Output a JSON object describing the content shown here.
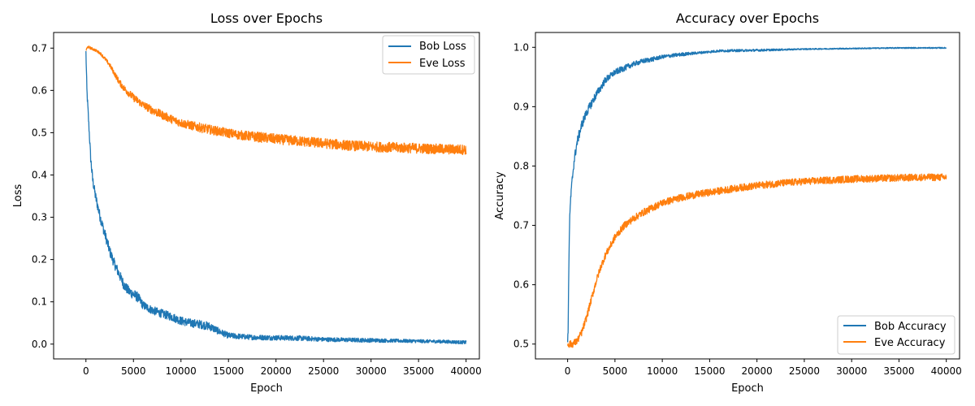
{
  "chart_data": [
    {
      "type": "line",
      "title": "Loss over Epochs",
      "xlabel": "Epoch",
      "ylabel": "Loss",
      "xlim": [
        -3400,
        41400
      ],
      "ylim": [
        -0.035,
        0.737
      ],
      "xticks": [
        0,
        5000,
        10000,
        15000,
        20000,
        25000,
        30000,
        35000,
        40000
      ],
      "yticks": [
        0.0,
        0.1,
        0.2,
        0.3,
        0.4,
        0.5,
        0.6,
        0.7
      ],
      "grid": false,
      "legend": "upper right",
      "series": [
        {
          "name": "Bob Loss",
          "color": "#1f77b4",
          "x": [
            0,
            100,
            200,
            300,
            400,
            500,
            700,
            1000,
            1500,
            2000,
            2500,
            3000,
            3500,
            4000,
            4500,
            5000,
            5500,
            6000,
            7000,
            8000,
            9000,
            10000,
            11000,
            12000,
            13000,
            14000,
            15000,
            17500,
            20000,
            22500,
            25000,
            27500,
            30000,
            32500,
            35000,
            37500,
            40000
          ],
          "values": [
            0.69,
            0.6,
            0.56,
            0.52,
            0.48,
            0.44,
            0.39,
            0.35,
            0.3,
            0.26,
            0.22,
            0.19,
            0.165,
            0.14,
            0.125,
            0.118,
            0.11,
            0.092,
            0.08,
            0.072,
            0.065,
            0.055,
            0.05,
            0.047,
            0.042,
            0.03,
            0.02,
            0.016,
            0.015,
            0.014,
            0.011,
            0.01,
            0.009,
            0.008,
            0.007,
            0.006,
            0.004
          ],
          "noise": [
            0.01,
            0.01,
            0.01,
            0.01,
            0.01,
            0.012,
            0.012,
            0.012,
            0.012,
            0.012,
            0.012,
            0.012,
            0.012,
            0.012,
            0.012,
            0.012,
            0.012,
            0.01,
            0.01,
            0.01,
            0.01,
            0.01,
            0.01,
            0.01,
            0.01,
            0.008,
            0.007,
            0.006,
            0.006,
            0.006,
            0.005,
            0.005,
            0.005,
            0.004,
            0.004,
            0.004,
            0.004
          ]
        },
        {
          "name": "Eve Loss",
          "color": "#ff7f0e",
          "x": [
            0,
            200,
            500,
            1000,
            1500,
            2000,
            2500,
            3000,
            3500,
            4000,
            5000,
            6000,
            7000,
            8000,
            9000,
            10000,
            12000,
            14000,
            16000,
            18000,
            20000,
            22500,
            25000,
            27500,
            30000,
            32500,
            35000,
            37500,
            40000
          ],
          "values": [
            0.695,
            0.703,
            0.7,
            0.695,
            0.688,
            0.675,
            0.66,
            0.64,
            0.62,
            0.605,
            0.583,
            0.566,
            0.553,
            0.542,
            0.532,
            0.523,
            0.512,
            0.503,
            0.495,
            0.49,
            0.485,
            0.48,
            0.475,
            0.47,
            0.467,
            0.465,
            0.463,
            0.461,
            0.46
          ],
          "noise": [
            0.003,
            0.003,
            0.003,
            0.003,
            0.003,
            0.004,
            0.005,
            0.006,
            0.007,
            0.008,
            0.009,
            0.009,
            0.01,
            0.01,
            0.01,
            0.01,
            0.011,
            0.011,
            0.011,
            0.012,
            0.012,
            0.012,
            0.012,
            0.012,
            0.012,
            0.012,
            0.012,
            0.012,
            0.012
          ]
        }
      ]
    },
    {
      "type": "line",
      "title": "Accuracy over Epochs",
      "xlabel": "Epoch",
      "ylabel": "Accuracy",
      "xlim": [
        -3400,
        41400
      ],
      "ylim": [
        0.475,
        1.025
      ],
      "xticks": [
        0,
        5000,
        10000,
        15000,
        20000,
        25000,
        30000,
        35000,
        40000
      ],
      "yticks": [
        0.5,
        0.6,
        0.7,
        0.8,
        0.9,
        1.0
      ],
      "grid": false,
      "legend": "lower right",
      "series": [
        {
          "name": "Bob Accuracy",
          "color": "#1f77b4",
          "x": [
            0,
            50,
            100,
            150,
            200,
            300,
            400,
            500,
            700,
            1000,
            1500,
            2000,
            2500,
            3000,
            3500,
            4000,
            5000,
            6000,
            7000,
            8000,
            9000,
            10000,
            12000,
            14000,
            16000,
            20000,
            25000,
            30000,
            35000,
            40000
          ],
          "values": [
            0.5,
            0.52,
            0.6,
            0.65,
            0.7,
            0.74,
            0.76,
            0.78,
            0.81,
            0.84,
            0.87,
            0.89,
            0.905,
            0.92,
            0.932,
            0.945,
            0.958,
            0.965,
            0.972,
            0.977,
            0.98,
            0.984,
            0.988,
            0.991,
            0.994,
            0.995,
            0.997,
            0.998,
            0.999,
            0.999
          ],
          "noise": [
            0.008,
            0.008,
            0.008,
            0.008,
            0.008,
            0.008,
            0.008,
            0.008,
            0.008,
            0.008,
            0.008,
            0.007,
            0.007,
            0.007,
            0.006,
            0.006,
            0.005,
            0.005,
            0.004,
            0.004,
            0.004,
            0.003,
            0.003,
            0.002,
            0.002,
            0.002,
            0.001,
            0.001,
            0.001,
            0.001
          ]
        },
        {
          "name": "Eve Accuracy",
          "color": "#ff7f0e",
          "x": [
            0,
            500,
            1000,
            1500,
            2000,
            2500,
            3000,
            3500,
            4000,
            4500,
            5000,
            6000,
            7000,
            8000,
            9000,
            10000,
            12000,
            14000,
            16000,
            18000,
            20000,
            22500,
            25000,
            27500,
            30000,
            32500,
            35000,
            37500,
            40000
          ],
          "values": [
            0.5,
            0.5,
            0.505,
            0.52,
            0.545,
            0.575,
            0.605,
            0.63,
            0.65,
            0.665,
            0.68,
            0.7,
            0.712,
            0.722,
            0.73,
            0.738,
            0.747,
            0.753,
            0.758,
            0.763,
            0.767,
            0.771,
            0.774,
            0.776,
            0.778,
            0.779,
            0.78,
            0.781,
            0.781
          ],
          "noise": [
            0.006,
            0.006,
            0.006,
            0.006,
            0.006,
            0.006,
            0.006,
            0.006,
            0.006,
            0.006,
            0.006,
            0.006,
            0.006,
            0.006,
            0.006,
            0.006,
            0.006,
            0.006,
            0.006,
            0.006,
            0.006,
            0.006,
            0.006,
            0.006,
            0.006,
            0.006,
            0.006,
            0.006,
            0.006
          ]
        }
      ]
    }
  ]
}
